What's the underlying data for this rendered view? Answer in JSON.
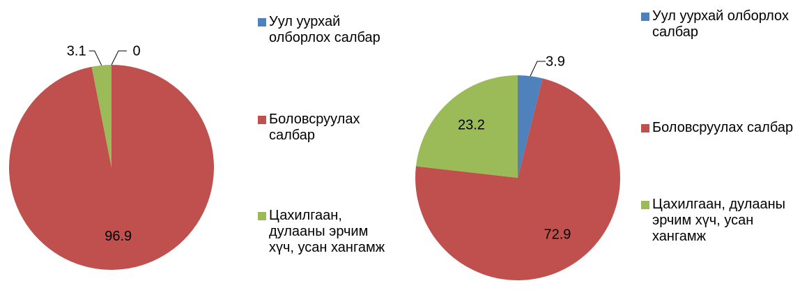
{
  "chart_data": [
    {
      "type": "pie",
      "categories": [
        "Уул уурхай олборлох салбар",
        "Боловсруулах салбар",
        "Цахилгаан, дулааны эрчим хүч, усан хангамж"
      ],
      "values": [
        0,
        96.9,
        3.1
      ],
      "colors": [
        "#4f81bd",
        "#c0504d",
        "#9bbb59"
      ]
    },
    {
      "type": "pie",
      "categories": [
        "Уул уурхай олборлох салбар",
        "Боловсруулах салбар",
        "Цахилгаан, дулааны эрчим хүч, усан хангамж"
      ],
      "values": [
        3.9,
        72.9,
        23.2
      ],
      "colors": [
        "#4f81bd",
        "#c0504d",
        "#9bbb59"
      ]
    }
  ]
}
